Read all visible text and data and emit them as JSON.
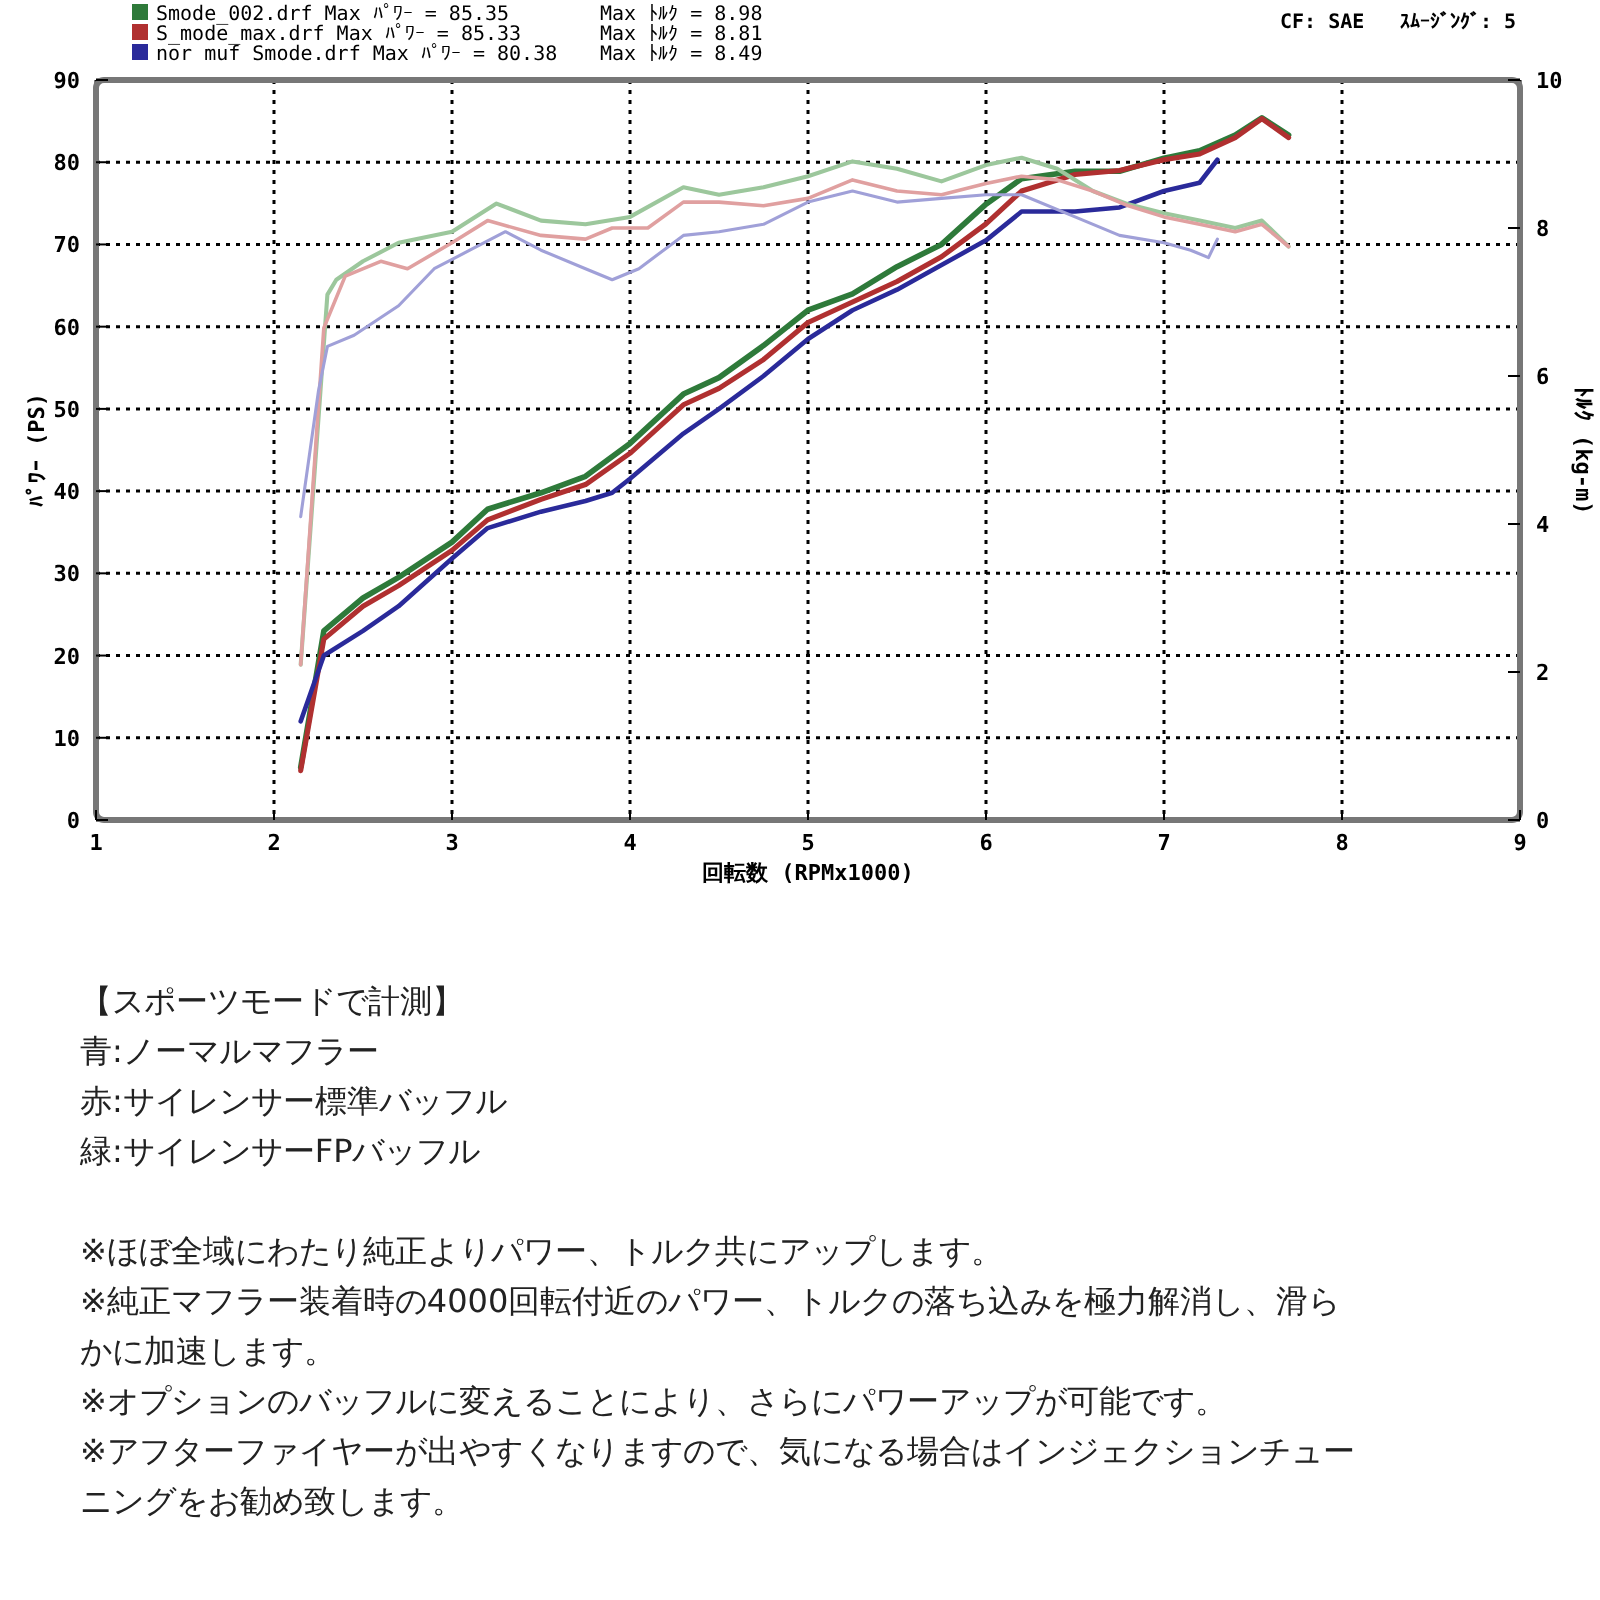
{
  "chart_data": {
    "type": "line",
    "xlabel": "回転数 (RPMx1000)",
    "ylabel": "ﾊﾟﾜｰ (PS)",
    "y2label": "ﾄﾙｸ (kg-m)",
    "xlim": [
      1,
      9
    ],
    "xticks": [
      1,
      2,
      3,
      4,
      5,
      6,
      7,
      8,
      9
    ],
    "ylim": [
      0,
      90
    ],
    "yticks": [
      0,
      10,
      20,
      30,
      40,
      50,
      60,
      70,
      80,
      90
    ],
    "y2lim": [
      0,
      10
    ],
    "y2ticks": [
      0,
      2,
      4,
      6,
      8,
      10
    ],
    "grid": true,
    "legend": "top left",
    "series": [
      {
        "name": "Smode_002.drf Max ﾊﾟﾜｰ = 85.35",
        "color": "#2e7a3a",
        "x": [
          2.15,
          2.28,
          2.5,
          2.7,
          3.0,
          3.2,
          3.5,
          3.75,
          4.0,
          4.3,
          4.5,
          4.75,
          5.0,
          5.25,
          5.5,
          5.75,
          6.0,
          6.2,
          6.5,
          6.75,
          7.0,
          7.2,
          7.4,
          7.55,
          7.7
        ],
        "values": [
          6.4,
          23,
          27,
          29.5,
          33.8,
          37.8,
          39.8,
          41.8,
          45.8,
          51.8,
          53.8,
          57.7,
          62,
          64,
          67.3,
          70,
          74.9,
          78,
          78.9,
          78.9,
          80.5,
          81.4,
          83.3,
          85.4,
          83.3
        ]
      },
      {
        "name": "S_mode_max.drf Max ﾊﾟﾜｰ = 85.33",
        "color": "#b03030",
        "x": [
          2.15,
          2.28,
          2.5,
          2.7,
          3.0,
          3.2,
          3.5,
          3.75,
          4.0,
          4.3,
          4.5,
          4.75,
          5.0,
          5.25,
          5.5,
          5.75,
          6.0,
          6.2,
          6.5,
          6.75,
          7.0,
          7.2,
          7.4,
          7.55,
          7.7
        ],
        "values": [
          6,
          22,
          26,
          28.5,
          32.8,
          36.5,
          39,
          40.8,
          44.6,
          50.5,
          52.5,
          56,
          60.5,
          63,
          65.5,
          68.5,
          72.5,
          76.5,
          78.5,
          79,
          80.3,
          81,
          83,
          85.3,
          83
        ]
      },
      {
        "name": "nor muf Smode.drf Max ﾊﾟﾜｰ = 80.38",
        "color": "#2a2a9a",
        "x": [
          2.15,
          2.28,
          2.5,
          2.7,
          3.0,
          3.2,
          3.5,
          3.75,
          3.9,
          4.0,
          4.3,
          4.5,
          4.75,
          5.0,
          5.25,
          5.5,
          5.75,
          6.0,
          6.2,
          6.5,
          6.75,
          7.0,
          7.2,
          7.3
        ],
        "values": [
          12,
          20,
          23,
          26,
          31.8,
          35.5,
          37.5,
          38.8,
          39.8,
          41.5,
          47,
          50,
          54,
          58.5,
          62,
          64.5,
          67.5,
          70.5,
          74,
          74,
          74.5,
          76.5,
          77.5,
          80.3
        ]
      },
      {
        "axis": "y2",
        "color": "#9cc79c",
        "x": [
          2.15,
          2.3,
          2.35,
          2.5,
          2.7,
          3.0,
          3.25,
          3.5,
          3.75,
          4.0,
          4.3,
          4.5,
          4.75,
          5.0,
          5.25,
          5.5,
          5.75,
          6.0,
          6.2,
          6.4,
          6.6,
          6.8,
          7.0,
          7.2,
          7.4,
          7.55,
          7.7
        ],
        "values": [
          2.1,
          7.1,
          7.3,
          7.55,
          7.8,
          7.95,
          8.33,
          8.1,
          8.05,
          8.15,
          8.55,
          8.45,
          8.55,
          8.7,
          8.9,
          8.8,
          8.63,
          8.85,
          8.95,
          8.8,
          8.5,
          8.32,
          8.2,
          8.1,
          8.0,
          8.1,
          7.75
        ]
      },
      {
        "axis": "y2",
        "color": "#e0a0a0",
        "x": [
          2.15,
          2.28,
          2.4,
          2.6,
          2.75,
          3.0,
          3.2,
          3.5,
          3.75,
          3.9,
          4.1,
          4.3,
          4.5,
          4.75,
          5.0,
          5.25,
          5.5,
          5.75,
          6.0,
          6.2,
          6.4,
          6.6,
          6.8,
          7.0,
          7.2,
          7.4,
          7.55,
          7.7
        ],
        "values": [
          2.1,
          6.65,
          7.35,
          7.55,
          7.45,
          7.8,
          8.1,
          7.9,
          7.85,
          8.0,
          8.0,
          8.35,
          8.35,
          8.3,
          8.4,
          8.65,
          8.5,
          8.45,
          8.6,
          8.7,
          8.65,
          8.5,
          8.3,
          8.15,
          8.05,
          7.95,
          8.05,
          7.75
        ]
      },
      {
        "axis": "y2",
        "color": "#a0a0d8",
        "x": [
          2.15,
          2.25,
          2.3,
          2.45,
          2.7,
          2.9,
          3.1,
          3.3,
          3.5,
          3.75,
          3.9,
          4.05,
          4.3,
          4.5,
          4.75,
          5.0,
          5.25,
          5.5,
          5.75,
          6.0,
          6.2,
          6.5,
          6.75,
          7.0,
          7.15,
          7.25,
          7.3
        ],
        "values": [
          4.1,
          5.8,
          6.4,
          6.55,
          6.95,
          7.45,
          7.7,
          7.95,
          7.7,
          7.45,
          7.3,
          7.45,
          7.9,
          7.95,
          8.05,
          8.35,
          8.5,
          8.35,
          8.4,
          8.45,
          8.45,
          8.15,
          7.9,
          7.8,
          7.7,
          7.6,
          7.85
        ]
      }
    ],
    "annotations": [
      "Max ﾄﾙｸ = 8.98",
      "Max ﾄﾙｸ = 8.81",
      "Max ﾄﾙｸ = 8.49",
      "CF: SAE",
      "ｽﾑｰｼﾞﾝｸﾞ: 5",
      "【スポーツモードで計測】",
      "青:ノーマルマフラー",
      "赤:サイレンサー標準バッフル",
      "緑:サイレンサーFPバッフル",
      "※ほぼ全域にわたり純正よりパワー、トルク共にアップします。",
      "※純正マフラー装着時の4000回転付近のパワー、トルクの落ち込みを極力解消し、滑らかに加速します。",
      "※オプションのバッフルに変えることにより、さらにパワーアップが可能です。",
      "※アフターファイヤーが出やすくなりますので、気になる場合はインジェクションチューニングをお勧め致します。"
    ]
  }
}
